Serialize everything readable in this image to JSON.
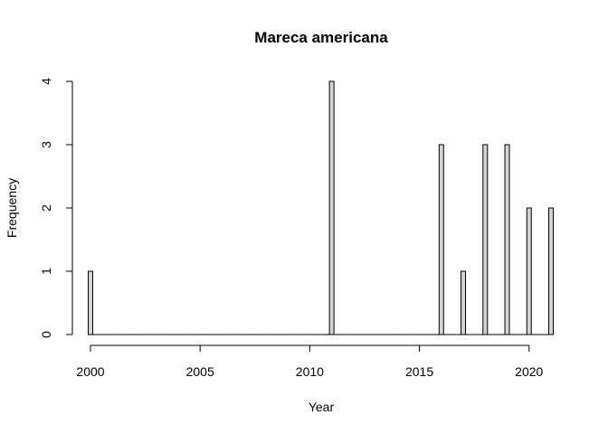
{
  "chart_data": {
    "type": "bar",
    "title": "Mareca americana",
    "xlabel": "Year",
    "ylabel": "Frequency",
    "bar_fill": "#d3d3d3",
    "bar_stroke": "#000000",
    "xlim": [
      2000,
      2021
    ],
    "ylim": [
      0,
      4
    ],
    "x_ticks": [
      2000,
      2005,
      2010,
      2015,
      2020
    ],
    "y_ticks": [
      0,
      1,
      2,
      3,
      4
    ],
    "x": [
      2000,
      2001,
      2002,
      2003,
      2004,
      2005,
      2006,
      2007,
      2008,
      2009,
      2010,
      2011,
      2012,
      2013,
      2014,
      2015,
      2016,
      2017,
      2018,
      2019,
      2020,
      2021
    ],
    "values": [
      1,
      0,
      0,
      0,
      0,
      0,
      0,
      0,
      0,
      0,
      0,
      4,
      0,
      0,
      0,
      0,
      3,
      1,
      3,
      3,
      2,
      2
    ]
  }
}
